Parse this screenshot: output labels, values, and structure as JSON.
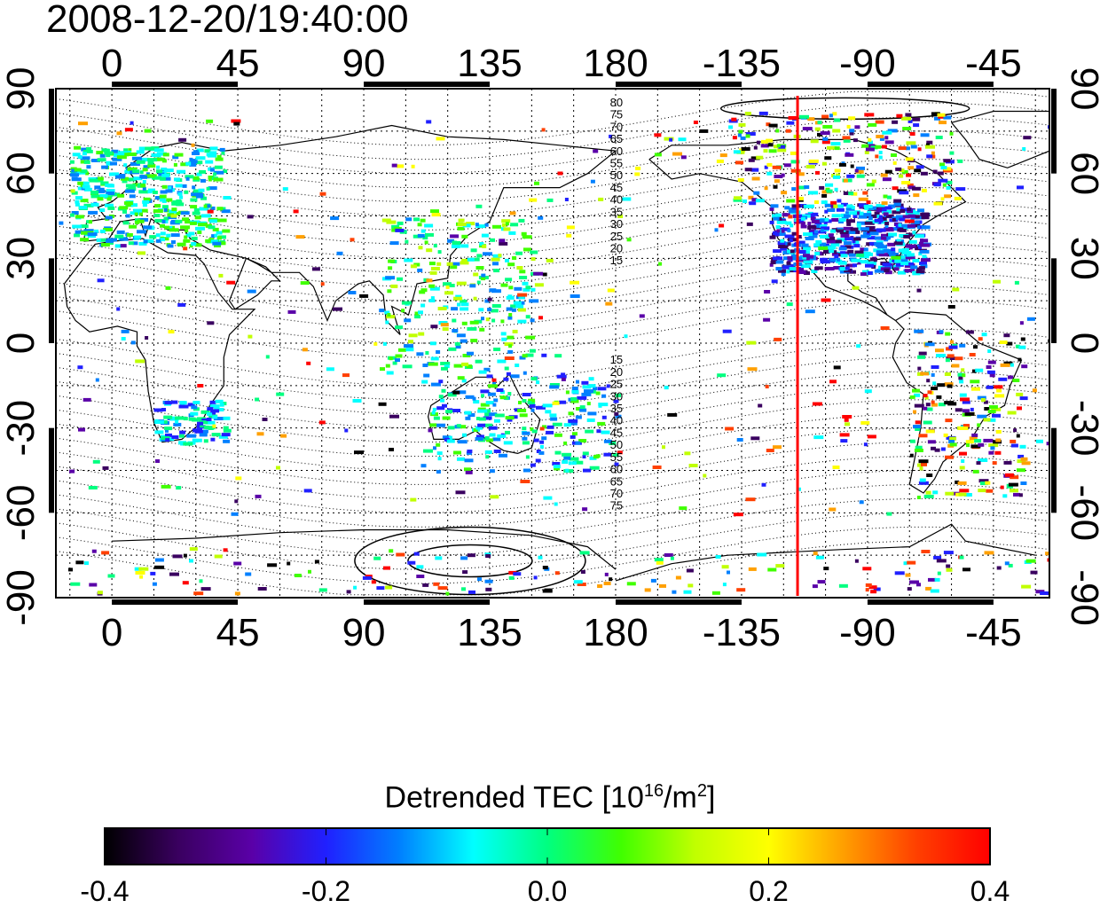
{
  "timestamp": "2008-12-20/19:40:00",
  "map": {
    "lon_ticks": [
      "0",
      "45",
      "90",
      "135",
      "180",
      "-135",
      "-90",
      "-45"
    ],
    "lat_ticks": [
      "90",
      "60",
      "30",
      "0",
      "-30",
      "-60",
      "-90"
    ],
    "lon_range": [
      -20,
      335
    ],
    "lat_range": [
      -90,
      90
    ],
    "grid": true,
    "marker_line_longitude": -115,
    "marker_line_color": "#ff0000",
    "contour_labels_north": [
      "80",
      "75",
      "70",
      "65",
      "60",
      "55",
      "50",
      "45",
      "40",
      "35",
      "30",
      "25",
      "20",
      "15"
    ],
    "contour_labels_south": [
      "15",
      "20",
      "25",
      "30",
      "35",
      "40",
      "45",
      "50",
      "55",
      "60",
      "65",
      "70",
      "75"
    ]
  },
  "colorbar": {
    "title_prefix": "Detrended TEC  [10",
    "title_sup1": "16",
    "title_mid": "/m",
    "title_sup2": "2",
    "title_suffix": "]",
    "range": [
      -0.4,
      0.4
    ],
    "tick_labels": [
      "-0.4",
      "-0.2",
      "0.0",
      "0.2",
      "0.4"
    ],
    "colors": [
      "#000000",
      "#3a0060",
      "#5a00a8",
      "#2020ff",
      "#0080ff",
      "#00ffff",
      "#00ff80",
      "#40ff00",
      "#c0ff00",
      "#ffff00",
      "#ffa000",
      "#ff4000",
      "#ff0000"
    ]
  }
}
